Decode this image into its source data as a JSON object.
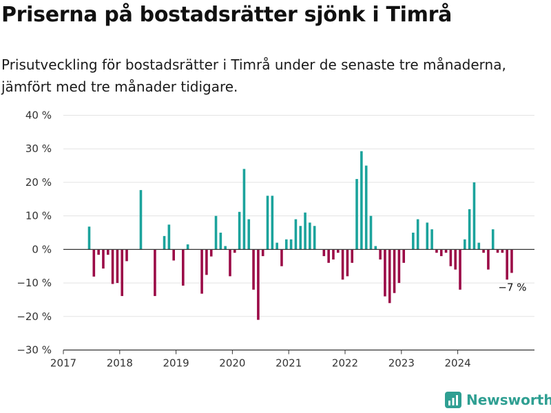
{
  "title": "Priserna på bostadsrätter sjönk i Timrå",
  "subtitle": "Prisutveckling för bostadsrätter i Timrå under de senaste tre månaderna, jämfört med tre månader tidigare.",
  "logo_text": "Newsworthy",
  "colors": {
    "positive": "#1ba39c",
    "negative": "#9b0b47",
    "grid": "#e3e3e3",
    "axis": "#333333",
    "logo": "#2f9f92"
  },
  "chart_data": {
    "type": "bar",
    "x_ticks": [
      "2017",
      "2018",
      "2019",
      "2020",
      "2021",
      "2022",
      "2023",
      "2024"
    ],
    "y_ticks": [
      "−30 %",
      "−20 %",
      "−10 %",
      "0 %",
      "10 %",
      "20 %",
      "30 %",
      "40 %"
    ],
    "ylim": [
      -30,
      40
    ],
    "xlim": [
      "2017-01",
      "2025-03"
    ],
    "unit": "%",
    "grid": true,
    "annotation": {
      "text": "−7 %",
      "month": "2024-12",
      "value": -7
    },
    "series": [
      {
        "months": [
          "2017-06",
          "2017-07",
          "2017-08",
          "2017-09",
          "2017-10",
          "2017-11",
          "2017-12",
          "2018-01",
          "2018-02",
          "2018-03",
          "2018-04",
          "2018-05",
          "2018-06",
          "2018-07",
          "2018-08",
          "2018-09",
          "2018-10",
          "2018-11",
          "2018-12",
          "2019-01",
          "2019-02",
          "2019-03",
          "2019-04",
          "2019-05",
          "2019-06",
          "2019-07",
          "2019-08",
          "2019-09",
          "2019-10",
          "2019-11",
          "2019-12",
          "2020-01",
          "2020-02",
          "2020-03",
          "2020-04",
          "2020-05",
          "2020-06",
          "2020-07",
          "2020-08",
          "2020-09",
          "2020-10",
          "2020-11",
          "2020-12",
          "2021-01",
          "2021-02",
          "2021-03",
          "2021-04",
          "2021-05",
          "2021-06",
          "2021-07",
          "2021-08",
          "2021-09",
          "2021-10",
          "2021-11",
          "2021-12",
          "2022-01",
          "2022-02",
          "2022-03",
          "2022-04",
          "2022-05",
          "2022-06",
          "2022-07",
          "2022-08",
          "2022-09",
          "2022-10",
          "2022-11",
          "2022-12",
          "2023-01",
          "2023-02",
          "2023-03",
          "2023-04",
          "2023-05",
          "2023-06",
          "2023-07",
          "2023-08",
          "2023-09",
          "2023-10",
          "2023-11",
          "2023-12",
          "2024-01",
          "2024-02",
          "2024-03",
          "2024-04",
          "2024-05",
          "2024-06",
          "2024-07",
          "2024-08",
          "2024-09",
          "2024-10",
          "2024-11",
          "2024-12"
        ],
        "values": [
          6.8,
          -8.1,
          -1.6,
          -5.7,
          -1.6,
          -10.3,
          -10.0,
          -13.9,
          -3.5,
          null,
          null,
          17.7,
          null,
          null,
          -13.9,
          null,
          4.0,
          7.4,
          -3.3,
          null,
          -10.8,
          1.5,
          null,
          null,
          -13.2,
          -7.6,
          -2.1,
          10.0,
          5.0,
          1.0,
          -8.0,
          -1.0,
          11.2,
          24.0,
          9.0,
          -12.0,
          -21.0,
          -2.0,
          16.0,
          16.0,
          2.0,
          -5.0,
          3.0,
          3.0,
          9.0,
          7.0,
          11.0,
          8.0,
          7.0,
          null,
          -2.0,
          -4.0,
          -3.0,
          -1.0,
          -9.0,
          -8.0,
          -4.0,
          21.0,
          29.3,
          25.0,
          10.0,
          1.0,
          -3.0,
          -14.0,
          -16.0,
          -13.0,
          -10.0,
          -4.0,
          null,
          5.0,
          9.0,
          null,
          8.0,
          6.0,
          -1.0,
          -2.0,
          -1.0,
          -5.0,
          -6.0,
          -12.0,
          3.0,
          12.0,
          20.0,
          2.0,
          -1.0,
          -6.0,
          6.0,
          -1.0,
          -1.0,
          -9.0,
          -7.0
        ]
      }
    ]
  }
}
